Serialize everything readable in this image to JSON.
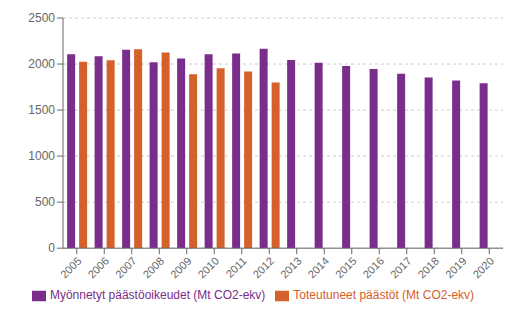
{
  "chart_data": {
    "type": "bar",
    "categories": [
      "2005",
      "2006",
      "2007",
      "2008",
      "2009",
      "2010",
      "2011",
      "2012",
      "2013",
      "2014",
      "2015",
      "2016",
      "2017",
      "2018",
      "2019",
      "2020"
    ],
    "series": [
      {
        "name": "Myönnetyt päästöoikeudet (Mt CO2-ekv)",
        "color": "#7B2D8B",
        "values": [
          2105,
          2085,
          2155,
          2020,
          2060,
          2105,
          2115,
          2165,
          2045,
          2015,
          1980,
          1945,
          1895,
          1855,
          1820,
          1790
        ]
      },
      {
        "name": "Toteutuneet päästöt (Mt CO2-ekv)",
        "color": "#D4602A",
        "values": [
          2025,
          2040,
          2160,
          2125,
          1890,
          1955,
          1920,
          1800,
          null,
          null,
          null,
          null,
          null,
          null,
          null,
          null
        ]
      }
    ],
    "ylim": [
      0,
      2500
    ],
    "yticks": [
      0,
      500,
      1000,
      1500,
      2000,
      2500
    ],
    "grid": true,
    "legend": "bottom"
  }
}
